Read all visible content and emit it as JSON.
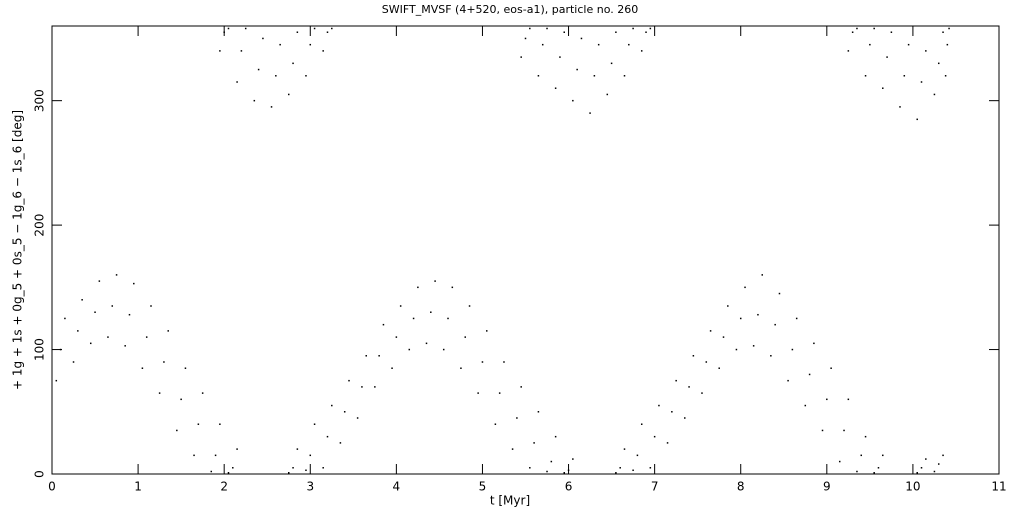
{
  "chart_data": {
    "type": "scatter",
    "title": "SWIFT_MVSF (4+520, eos-a1), particle no. 260",
    "xlabel": "t [Myr]",
    "ylabel": "+ 1g + 1s + 0g_5 + 0s_5 − 1g_6 − 1s_6 [deg]",
    "xlim": [
      0,
      11
    ],
    "xticks": [
      0,
      1,
      2,
      3,
      4,
      5,
      6,
      7,
      8,
      9,
      10,
      11
    ],
    "ylim": [
      0,
      360
    ],
    "yticks": [
      0,
      100,
      200,
      300
    ],
    "color": "#000000",
    "x": [
      0.05,
      0.1,
      0.15,
      0.25,
      0.3,
      0.35,
      0.45,
      0.5,
      0.55,
      0.65,
      0.7,
      0.75,
      0.85,
      0.9,
      0.95,
      1.05,
      1.1,
      1.15,
      1.25,
      1.3,
      1.35,
      1.45,
      1.5,
      1.55,
      1.65,
      1.7,
      1.75,
      1.85,
      1.9,
      1.95,
      2.05,
      2.1,
      2.15,
      1.95,
      2.0,
      2.05,
      2.15,
      2.2,
      2.25,
      2.35,
      2.4,
      2.45,
      2.55,
      2.6,
      2.65,
      2.75,
      2.8,
      2.85,
      2.95,
      3.0,
      3.05,
      3.15,
      3.2,
      3.25,
      2.75,
      2.8,
      2.85,
      2.95,
      3.0,
      3.05,
      3.15,
      3.2,
      3.25,
      3.35,
      3.4,
      3.45,
      3.55,
      3.6,
      3.65,
      3.75,
      3.8,
      3.85,
      3.95,
      4.0,
      4.05,
      4.15,
      4.2,
      4.25,
      4.35,
      4.4,
      4.45,
      4.55,
      4.6,
      4.65,
      4.75,
      4.8,
      4.85,
      4.95,
      5.0,
      5.05,
      5.15,
      5.2,
      5.25,
      5.35,
      5.4,
      5.45,
      5.55,
      5.6,
      5.65,
      5.75,
      5.8,
      5.85,
      5.95,
      6.0,
      6.05,
      5.45,
      5.5,
      5.55,
      5.65,
      5.7,
      5.75,
      5.85,
      5.9,
      5.95,
      6.05,
      6.1,
      6.15,
      6.25,
      6.3,
      6.35,
      6.45,
      6.5,
      6.55,
      6.65,
      6.7,
      6.75,
      6.85,
      6.9,
      6.95,
      6.55,
      6.6,
      6.65,
      6.75,
      6.8,
      6.85,
      6.95,
      7.0,
      7.05,
      7.15,
      7.2,
      7.25,
      7.35,
      7.4,
      7.45,
      7.55,
      7.6,
      7.65,
      7.75,
      7.8,
      7.85,
      7.95,
      8.0,
      8.05,
      8.15,
      8.2,
      8.25,
      8.35,
      8.4,
      8.45,
      8.55,
      8.6,
      8.65,
      8.75,
      8.8,
      8.85,
      8.95,
      9.0,
      9.05,
      9.15,
      9.2,
      9.25,
      9.35,
      9.4,
      9.45,
      9.55,
      9.6,
      9.65,
      9.25,
      9.3,
      9.35,
      9.45,
      9.5,
      9.55,
      9.65,
      9.7,
      9.75,
      9.85,
      9.9,
      9.95,
      10.05,
      10.1,
      10.15,
      10.25,
      10.3,
      10.35,
      10.38,
      10.4,
      10.42,
      10.05,
      10.1,
      10.15,
      10.25,
      10.3,
      10.35
    ],
    "values": [
      75,
      100,
      125,
      90,
      115,
      140,
      105,
      130,
      155,
      110,
      135,
      160,
      103,
      128,
      153,
      85,
      110,
      135,
      65,
      90,
      115,
      35,
      60,
      85,
      15,
      40,
      65,
      2,
      15,
      40,
      1,
      5,
      20,
      340,
      355,
      358,
      315,
      340,
      358,
      300,
      325,
      350,
      295,
      320,
      345,
      305,
      330,
      355,
      320,
      345,
      358,
      340,
      355,
      358,
      1,
      5,
      20,
      3,
      15,
      40,
      5,
      30,
      55,
      25,
      50,
      75,
      45,
      70,
      95,
      70,
      95,
      120,
      85,
      110,
      135,
      100,
      125,
      150,
      105,
      130,
      155,
      100,
      125,
      150,
      85,
      110,
      135,
      65,
      90,
      115,
      40,
      65,
      90,
      20,
      45,
      70,
      5,
      25,
      50,
      2,
      10,
      30,
      1,
      3,
      12,
      335,
      350,
      358,
      320,
      345,
      358,
      310,
      335,
      355,
      300,
      325,
      350,
      290,
      320,
      345,
      305,
      330,
      355,
      320,
      345,
      358,
      340,
      355,
      358,
      1,
      5,
      20,
      3,
      15,
      40,
      5,
      30,
      55,
      25,
      50,
      75,
      45,
      70,
      95,
      65,
      90,
      115,
      85,
      110,
      135,
      100,
      125,
      150,
      103,
      128,
      160,
      95,
      120,
      145,
      75,
      100,
      125,
      55,
      80,
      105,
      35,
      60,
      85,
      10,
      35,
      60,
      2,
      15,
      30,
      1,
      5,
      15,
      340,
      355,
      358,
      320,
      345,
      358,
      310,
      335,
      355,
      295,
      320,
      345,
      285,
      315,
      340,
      305,
      330,
      355,
      320,
      345,
      358,
      1,
      5,
      12,
      2,
      8,
      15
    ]
  }
}
